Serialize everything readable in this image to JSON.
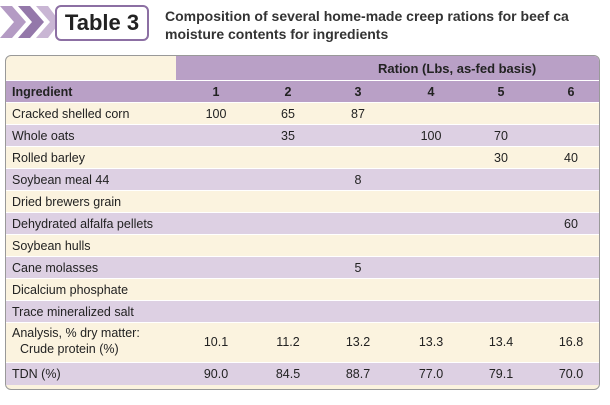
{
  "header": {
    "label": "Table 3",
    "title_lines": [
      "Composition of several home-made creep rations for beef ca",
      "moisture contents for ingredients"
    ]
  },
  "table": {
    "group_header": "Ration (Lbs, as-fed basis)",
    "columns": [
      "Ingredient",
      1,
      2,
      3,
      4,
      5,
      6
    ],
    "rows": [
      [
        "Cracked shelled corn",
        100,
        65,
        87,
        null,
        null,
        null
      ],
      [
        "Whole oats",
        null,
        35,
        null,
        100,
        70,
        null
      ],
      [
        "Rolled barley",
        null,
        null,
        null,
        null,
        30,
        40
      ],
      [
        "Soybean meal 44",
        null,
        null,
        8,
        null,
        null,
        null
      ],
      [
        "Dried brewers grain",
        null,
        null,
        null,
        null,
        null,
        null
      ],
      [
        "Dehydrated alfalfa pellets",
        null,
        null,
        null,
        null,
        null,
        60
      ],
      [
        "Soybean hulls",
        null,
        null,
        null,
        null,
        null,
        null
      ],
      [
        "Cane molasses",
        null,
        null,
        5,
        null,
        null,
        null
      ],
      [
        "Dicalcium phosphate",
        null,
        null,
        null,
        null,
        null,
        null
      ],
      [
        "Trace mineralized salt",
        null,
        null,
        null,
        null,
        null,
        null
      ],
      [
        [
          "Analysis, % dry matter:",
          "Crude protein (%)"
        ],
        10.1,
        11.2,
        13.2,
        13.3,
        13.4,
        16.8
      ],
      [
        "TDN (%)",
        "90.0",
        "84.5",
        "88.7",
        "77.0",
        "79.1",
        "70.0"
      ]
    ]
  }
}
